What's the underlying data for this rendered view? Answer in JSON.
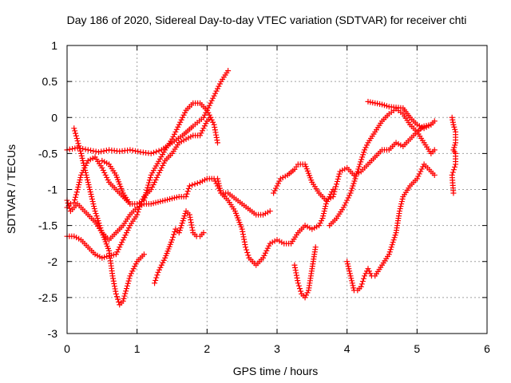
{
  "chart_data": {
    "type": "scatter",
    "title": "Day 186 of 2020, Sidereal Day-to-day VTEC variation (SDTVAR) for receiver chti",
    "xlabel": "GPS time / hours",
    "ylabel": "SDTVAR / TECUs",
    "xlim": [
      0,
      6
    ],
    "ylim": [
      -3,
      1
    ],
    "xticks": [
      0,
      1,
      2,
      3,
      4,
      5,
      6
    ],
    "yticks": [
      -3,
      -2.5,
      -2,
      -1.5,
      -1,
      -0.5,
      0,
      0.5,
      1
    ],
    "xtick_labels": [
      "0",
      "1",
      "2",
      "3",
      "4",
      "5",
      "6"
    ],
    "ytick_labels": [
      "-3",
      "-2.5",
      "-2",
      "-1.5",
      "-1",
      "-0.5",
      "0",
      "0.5",
      "1"
    ],
    "grid": true,
    "marker": "plus",
    "color": "#ff0000",
    "series": [
      {
        "x": [
          0.0,
          0.15,
          0.3,
          0.45,
          0.6,
          0.75,
          0.9,
          1.05,
          1.2,
          1.35,
          1.5,
          1.65,
          1.8,
          1.95,
          2.1,
          2.2,
          2.3
        ],
        "y": [
          -0.45,
          -0.42,
          -0.45,
          -0.48,
          -0.45,
          -0.47,
          -0.45,
          -0.48,
          -0.5,
          -0.45,
          -0.35,
          -0.25,
          -0.12,
          0.0,
          0.3,
          0.5,
          0.65
        ]
      },
      {
        "x": [
          0.0,
          0.05,
          0.1,
          0.15,
          0.2,
          0.3,
          0.4,
          0.5,
          0.6,
          0.7,
          0.8,
          0.9
        ],
        "y": [
          -1.25,
          -1.2,
          -1.18,
          -1.0,
          -0.8,
          -0.6,
          -0.55,
          -0.7,
          -0.9,
          -1.0,
          -1.1,
          -1.2
        ]
      },
      {
        "x": [
          0.0,
          0.05,
          0.1,
          0.15,
          0.2,
          0.3,
          0.4,
          0.5,
          0.6,
          0.7,
          0.8,
          0.9,
          1.0,
          1.1,
          1.2,
          1.4,
          1.6,
          1.7,
          1.75,
          1.9,
          2.0,
          2.1,
          2.2,
          2.3,
          2.5,
          2.7,
          2.8,
          2.9
        ],
        "y": [
          -1.15,
          -1.3,
          -1.25,
          -1.2,
          -1.25,
          -1.35,
          -1.45,
          -1.6,
          -1.7,
          -1.6,
          -1.5,
          -1.35,
          -1.25,
          -1.2,
          -1.2,
          -1.15,
          -1.1,
          -1.1,
          -0.95,
          -0.9,
          -0.85,
          -0.85,
          -1.05,
          -1.05,
          -1.2,
          -1.35,
          -1.35,
          -1.3
        ]
      },
      {
        "x": [
          0.0,
          0.1,
          0.2,
          0.3,
          0.4,
          0.5,
          0.6,
          0.7,
          0.8,
          0.9,
          1.0,
          1.05,
          1.1,
          1.2,
          1.3,
          1.4,
          1.5,
          1.6,
          1.7,
          1.8,
          1.9,
          1.95,
          2.0,
          2.05,
          2.1,
          2.15
        ],
        "y": [
          -1.65,
          -1.65,
          -1.7,
          -1.8,
          -1.9,
          -1.95,
          -1.92,
          -1.9,
          -1.7,
          -1.5,
          -1.35,
          -1.2,
          -1.1,
          -1.0,
          -0.8,
          -0.6,
          -0.5,
          -0.35,
          -0.3,
          -0.25,
          -0.25,
          -0.15,
          -0.05,
          0.0,
          -0.1,
          -0.35
        ]
      },
      {
        "x": [
          0.1,
          0.2,
          0.3,
          0.4,
          0.5,
          0.6,
          0.65,
          0.7,
          0.75,
          0.8,
          0.9,
          1.0,
          1.1
        ],
        "y": [
          -0.15,
          -0.5,
          -0.9,
          -1.3,
          -1.6,
          -1.85,
          -2.2,
          -2.45,
          -2.6,
          -2.55,
          -2.2,
          -2.0,
          -1.9
        ]
      },
      {
        "x": [
          0.5,
          0.6,
          0.7,
          0.8,
          0.9,
          1.0,
          1.1,
          1.2,
          1.4,
          1.5,
          1.6,
          1.7,
          1.8,
          1.9,
          2.0,
          2.05
        ],
        "y": [
          -0.6,
          -0.65,
          -0.8,
          -1.05,
          -1.2,
          -1.2,
          -1.15,
          -0.8,
          -0.45,
          -0.3,
          -0.1,
          0.1,
          0.2,
          0.2,
          0.1,
          0.0
        ]
      },
      {
        "x": [
          1.25,
          1.3,
          1.4,
          1.5,
          1.55,
          1.6,
          1.7,
          1.75,
          1.8,
          1.85,
          1.9,
          1.95
        ],
        "y": [
          -2.3,
          -2.15,
          -1.95,
          -1.7,
          -1.55,
          -1.6,
          -1.3,
          -1.35,
          -1.6,
          -1.65,
          -1.65,
          -1.6
        ]
      },
      {
        "x": [
          2.15,
          2.2,
          2.3,
          2.4,
          2.5,
          2.55,
          2.6,
          2.65,
          2.7,
          2.8,
          2.9,
          3.0,
          3.1,
          3.2,
          3.3,
          3.4,
          3.5,
          3.6,
          3.65,
          3.7,
          3.75,
          3.8
        ],
        "y": [
          -0.85,
          -1.05,
          -1.15,
          -1.3,
          -1.55,
          -1.8,
          -1.95,
          -2.0,
          -2.05,
          -1.95,
          -1.75,
          -1.7,
          -1.75,
          -1.75,
          -1.6,
          -1.5,
          -1.55,
          -1.5,
          -1.4,
          -1.2,
          -1.1,
          -1.0
        ]
      },
      {
        "x": [
          2.95,
          3.05,
          3.15,
          3.25,
          3.3,
          3.4,
          3.5,
          3.6,
          3.7,
          3.8,
          3.9,
          4.0,
          4.1,
          4.2,
          4.3,
          4.5,
          4.6,
          4.7,
          4.8,
          4.9,
          5.0,
          5.1,
          5.2
        ],
        "y": [
          -1.05,
          -0.85,
          -0.8,
          -0.72,
          -0.65,
          -0.65,
          -0.9,
          -1.05,
          -1.15,
          -1.1,
          -0.75,
          -0.7,
          -0.8,
          -0.75,
          -0.65,
          -0.45,
          -0.45,
          -0.35,
          -0.4,
          -0.3,
          -0.2,
          -0.12,
          -0.1
        ]
      },
      {
        "x": [
          3.25,
          3.3,
          3.35,
          3.4,
          3.45,
          3.5,
          3.55
        ],
        "y": [
          -2.05,
          -2.3,
          -2.45,
          -2.5,
          -2.4,
          -2.1,
          -1.8
        ]
      },
      {
        "x": [
          3.75,
          3.85,
          3.95,
          4.05,
          4.15,
          4.25,
          4.3,
          4.4,
          4.5,
          4.6,
          4.7,
          4.8,
          4.9,
          5.0,
          5.1,
          5.2,
          5.25
        ],
        "y": [
          -1.5,
          -1.4,
          -1.25,
          -1.05,
          -0.75,
          -0.45,
          -0.35,
          -0.2,
          -0.05,
          0.05,
          0.12,
          0.05,
          -0.1,
          -0.2,
          -0.35,
          -0.5,
          -0.45
        ]
      },
      {
        "x": [
          4.0,
          4.05,
          4.1,
          4.15,
          4.2,
          4.25,
          4.3,
          4.35,
          4.4,
          4.5,
          4.6,
          4.7,
          4.75,
          4.8,
          4.9,
          5.0,
          5.1,
          5.2,
          5.25
        ],
        "y": [
          -2.0,
          -2.2,
          -2.4,
          -2.4,
          -2.35,
          -2.2,
          -2.1,
          -2.2,
          -2.2,
          -2.05,
          -1.9,
          -1.6,
          -1.3,
          -1.1,
          -0.95,
          -0.85,
          -0.65,
          -0.75,
          -0.8
        ]
      },
      {
        "x": [
          4.3,
          4.4,
          4.5,
          4.6,
          4.7,
          4.8,
          4.9,
          5.0,
          5.1,
          5.2,
          5.25
        ],
        "y": [
          0.22,
          0.2,
          0.18,
          0.15,
          0.14,
          0.13,
          0.0,
          -0.1,
          -0.15,
          -0.1,
          -0.05
        ]
      },
      {
        "x": [
          5.5,
          5.52,
          5.55,
          5.55,
          5.52,
          5.55,
          5.55,
          5.5,
          5.52
        ],
        "y": [
          0.0,
          -0.1,
          -0.2,
          -0.35,
          -0.45,
          -0.5,
          -0.65,
          -0.8,
          -1.05
        ]
      }
    ]
  }
}
